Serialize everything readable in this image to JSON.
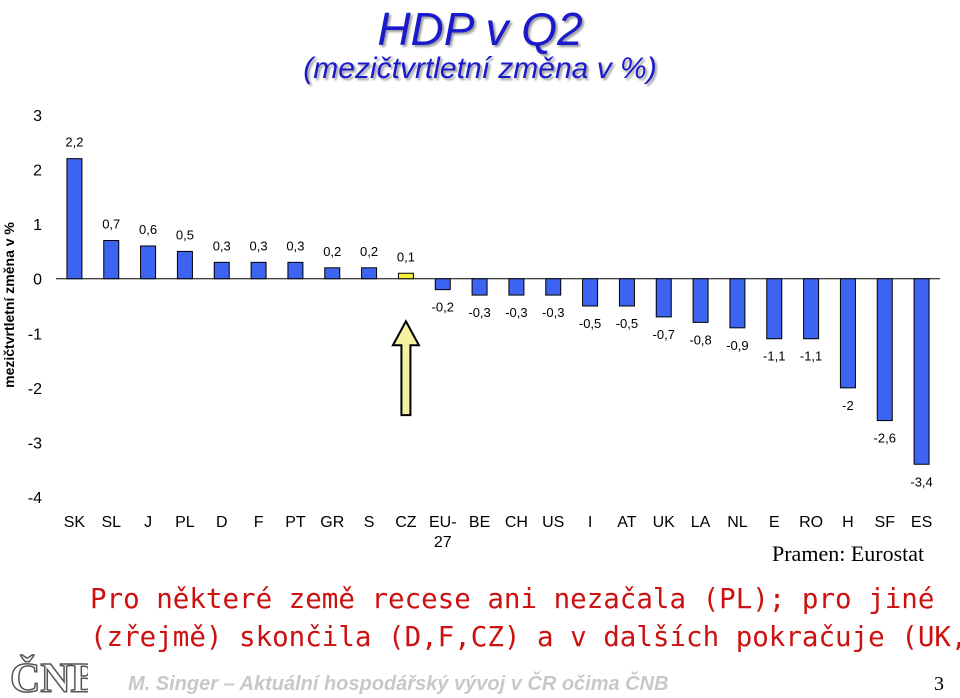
{
  "header": {
    "title": "HDP v Q2",
    "subtitle": "(mezičtvrtletní změna v %)"
  },
  "chart_data": {
    "type": "bar",
    "ylabel": "mezičtvrtletní změna v %",
    "ylim": [
      -4,
      3
    ],
    "yticks": [
      "3",
      "2",
      "1",
      "0",
      "-1",
      "-2",
      "-3",
      "-4"
    ],
    "ytick_values": [
      3,
      2,
      1,
      0,
      -1,
      -2,
      -3,
      -4
    ],
    "categories": [
      "SK",
      "SL",
      "J",
      "PL",
      "D",
      "F",
      "PT",
      "GR",
      "S",
      "CZ",
      "EU-27",
      "BE",
      "CH",
      "US",
      "I",
      "AT",
      "UK",
      "LA",
      "NL",
      "E",
      "RO",
      "H",
      "SF",
      "ES"
    ],
    "values": [
      2.2,
      0.7,
      0.6,
      0.5,
      0.3,
      0.3,
      0.3,
      0.2,
      0.2,
      0.1,
      -0.2,
      -0.3,
      -0.3,
      -0.3,
      -0.5,
      -0.5,
      -0.7,
      -0.8,
      -0.9,
      -1.1,
      -1.1,
      -2,
      -2.6,
      -3.4
    ],
    "value_labels": [
      "2,2",
      "0,7",
      "0,6",
      "0,5",
      "0,3",
      "0,3",
      "0,3",
      "0,2",
      "0,2",
      "0,1",
      "-0,2",
      "-0,3",
      "-0,3",
      "-0,3",
      "-0,5",
      "-0,5",
      "-0,7",
      "-0,8",
      "-0,9",
      "-1,1",
      "-1,1",
      "-2",
      "-2,6",
      "-3,4"
    ],
    "highlight_category": "CZ",
    "grid": false,
    "colors": {
      "bar": "#3c64f0",
      "highlight": "#f2f23c",
      "arrow_fill": "#f2f2a0",
      "arrow_stroke": "#000000"
    }
  },
  "source": "Pramen: Eurostat",
  "note": {
    "line1": "Pro některé země recese ani nezačala (PL); pro jiné",
    "line2": "(zřejmě) skončila (D,F,CZ) a v dalších pokračuje (UK,H)"
  },
  "logo_text": "ČNB",
  "footer": {
    "text": "M. Singer – Aktuální hospodářský vývoj v ČR očima ČNB",
    "page_number": "3"
  }
}
